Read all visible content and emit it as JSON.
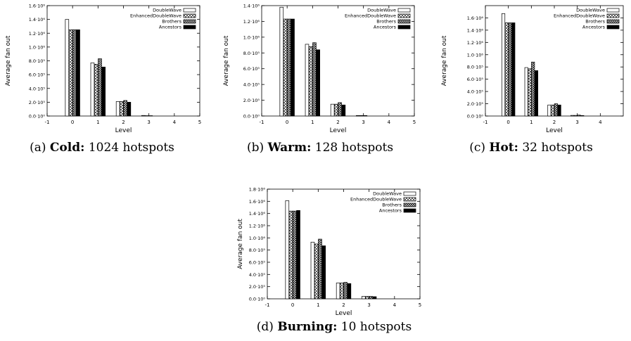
{
  "chart_data": [
    {
      "type": "bar",
      "xlabel": "Level",
      "ylabel": "Average fan out",
      "xlim": [
        -1,
        5
      ],
      "ylim": [
        0,
        1600000
      ],
      "x_ticks": [
        "-1",
        "0",
        "1",
        "2",
        "3",
        "4",
        "5"
      ],
      "y_ticks": [
        "0.0·10⁰",
        "2.0·10⁵",
        "4.0·10⁵",
        "6.0·10⁵",
        "8.0·10⁵",
        "1.0·10⁶",
        "1.2·10⁶",
        "1.4·10⁶",
        "1.6·10⁶"
      ],
      "legend_position": "top-right",
      "categories": [
        0,
        1,
        2,
        3,
        4
      ],
      "series": [
        {
          "name": "DoubleWave",
          "pattern": "white",
          "values": [
            1400000,
            770000,
            210000,
            8000,
            0
          ]
        },
        {
          "name": "EnhancedDoubleWave",
          "pattern": "crosshatch",
          "values": [
            1250000,
            750000,
            210000,
            5000,
            0
          ]
        },
        {
          "name": "Brothers",
          "pattern": "dense-crosshatch",
          "values": [
            1250000,
            830000,
            225000,
            5000,
            0
          ]
        },
        {
          "name": "Ancestors",
          "pattern": "black",
          "values": [
            1250000,
            710000,
            200000,
            0,
            0
          ]
        }
      ],
      "caption": {
        "label": "(a)",
        "bold": "Cold:",
        "text": "1024 hotspots"
      }
    },
    {
      "type": "bar",
      "xlabel": "Level",
      "ylabel": "Average fan out",
      "xlim": [
        -1,
        5
      ],
      "ylim": [
        0,
        1400000
      ],
      "x_ticks": [
        "-1",
        "0",
        "1",
        "2",
        "3",
        "4",
        "5"
      ],
      "y_ticks": [
        "0.0·10⁰",
        "2.0·10⁵",
        "4.0·10⁵",
        "6.0·10⁵",
        "8.0·10⁵",
        "1.0·10⁶",
        "1.2·10⁶",
        "1.4·10⁶"
      ],
      "legend_position": "top-right",
      "categories": [
        0,
        1,
        2,
        3,
        4
      ],
      "series": [
        {
          "name": "DoubleWave",
          "pattern": "white",
          "values": [
            1380000,
            910000,
            150000,
            6000,
            0
          ]
        },
        {
          "name": "EnhancedDoubleWave",
          "pattern": "crosshatch",
          "values": [
            1230000,
            880000,
            150000,
            6000,
            0
          ]
        },
        {
          "name": "Brothers",
          "pattern": "dense-crosshatch",
          "values": [
            1230000,
            930000,
            170000,
            6000,
            0
          ]
        },
        {
          "name": "Ancestors",
          "pattern": "black",
          "values": [
            1230000,
            840000,
            140000,
            0,
            0
          ]
        }
      ],
      "caption": {
        "label": "(b)",
        "bold": "Warm:",
        "text": "128 hotspots"
      }
    },
    {
      "type": "bar",
      "xlabel": "Level",
      "ylabel": "Average fan out",
      "xlim": [
        -1,
        5
      ],
      "ylim": [
        0,
        1800000
      ],
      "x_ticks": [
        "-1",
        "0",
        "1",
        "2",
        "3",
        "4"
      ],
      "y_ticks": [
        "0.0·10⁰",
        "2.0·10⁵",
        "4.0·10⁵",
        "6.0·10⁵",
        "8.0·10⁵",
        "1.0·10⁶",
        "1.2·10⁶",
        "1.4·10⁶",
        "1.6·10⁶"
      ],
      "legend_position": "top-right",
      "categories": [
        0,
        1,
        2,
        3,
        4
      ],
      "series": [
        {
          "name": "DoubleWave",
          "pattern": "white",
          "values": [
            1670000,
            790000,
            180000,
            10000,
            0
          ]
        },
        {
          "name": "EnhancedDoubleWave",
          "pattern": "crosshatch",
          "values": [
            1520000,
            770000,
            180000,
            10000,
            0
          ]
        },
        {
          "name": "Brothers",
          "pattern": "dense-crosshatch",
          "values": [
            1520000,
            880000,
            200000,
            15000,
            0
          ]
        },
        {
          "name": "Ancestors",
          "pattern": "black",
          "values": [
            1520000,
            740000,
            180000,
            8000,
            0
          ]
        }
      ],
      "caption": {
        "label": "(c)",
        "bold": "Hot:",
        "text": "32 hotspots"
      }
    },
    {
      "type": "bar",
      "xlabel": "Level",
      "ylabel": "Average fan out",
      "xlim": [
        -1,
        5
      ],
      "ylim": [
        0,
        1800000
      ],
      "x_ticks": [
        "-1",
        "0",
        "1",
        "2",
        "3",
        "4",
        "5"
      ],
      "y_ticks": [
        "0.0·10⁰",
        "2.0·10⁵",
        "4.0·10⁵",
        "6.0·10⁵",
        "8.0·10⁵",
        "1.0·10⁶",
        "1.2·10⁶",
        "1.4·10⁶",
        "1.6·10⁶",
        "1.8·10⁶"
      ],
      "legend_position": "top-right",
      "categories": [
        0,
        1,
        2,
        3,
        4
      ],
      "series": [
        {
          "name": "DoubleWave",
          "pattern": "white",
          "values": [
            1610000,
            930000,
            260000,
            40000,
            0
          ]
        },
        {
          "name": "EnhancedDoubleWave",
          "pattern": "crosshatch",
          "values": [
            1440000,
            900000,
            260000,
            40000,
            0
          ]
        },
        {
          "name": "Brothers",
          "pattern": "dense-crosshatch",
          "values": [
            1440000,
            980000,
            270000,
            40000,
            0
          ]
        },
        {
          "name": "Ancestors",
          "pattern": "black",
          "values": [
            1450000,
            870000,
            250000,
            35000,
            0
          ]
        }
      ],
      "caption": {
        "label": "(d)",
        "bold": "Burning:",
        "text": "10 hotspots"
      }
    }
  ]
}
